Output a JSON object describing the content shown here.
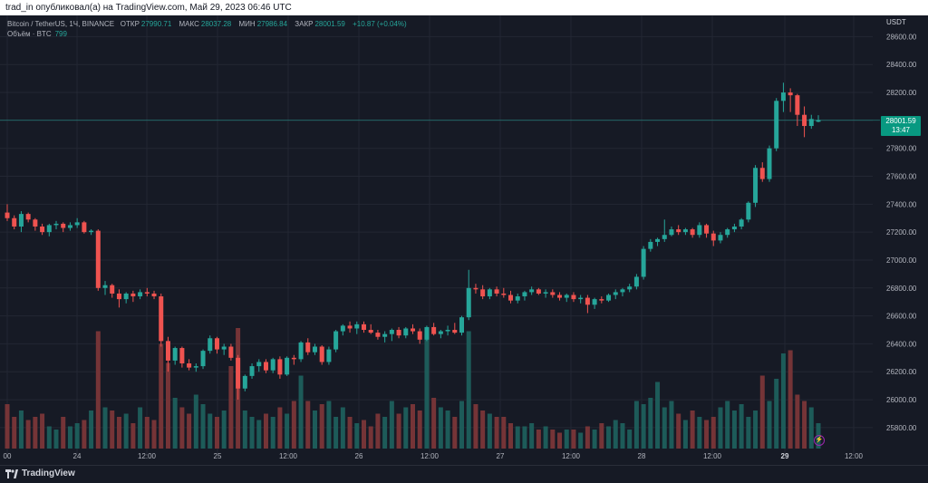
{
  "header": {
    "publish_line": "trad_in опубликовал(а) на TradingView.com, Май 29, 2023 06:46 UTC"
  },
  "legend": {
    "symbol": "Bitcoin / TetherUS, 1Ч, BINANCE",
    "open_label": "ОТКР",
    "open": "27990.71",
    "high_label": "МАКС",
    "high": "28037.28",
    "low_label": "МИН",
    "low": "27986.84",
    "close_label": "ЗАКР",
    "close": "28001.59",
    "change": "+10.87 (+0.04%)",
    "volume_label": "Объём · BTC",
    "volume": "799"
  },
  "axis": {
    "currency": "USDT",
    "y_ticks": [
      "28600.00",
      "28400.00",
      "28200.00",
      "28000.00",
      "27800.00",
      "27600.00",
      "27400.00",
      "27200.00",
      "27000.00",
      "26800.00",
      "26600.00",
      "26400.00",
      "26200.00",
      "26000.00",
      "25800.00"
    ],
    "x_ticks": [
      {
        "label": "00",
        "bold": false
      },
      {
        "label": "24",
        "bold": false
      },
      {
        "label": "12:00",
        "bold": false
      },
      {
        "label": "25",
        "bold": false
      },
      {
        "label": "12:00",
        "bold": false
      },
      {
        "label": "26",
        "bold": false
      },
      {
        "label": "12:00",
        "bold": false
      },
      {
        "label": "27",
        "bold": false
      },
      {
        "label": "12:00",
        "bold": false
      },
      {
        "label": "28",
        "bold": false
      },
      {
        "label": "12:00",
        "bold": false
      },
      {
        "label": "29",
        "bold": true
      },
      {
        "label": "12:00",
        "bold": false
      }
    ]
  },
  "price_tag": {
    "price": "28001.59",
    "countdown": "13:47"
  },
  "footer": {
    "brand": "TradingView"
  },
  "colors": {
    "up": "#26a69a",
    "down": "#ef5350",
    "bg": "#161a25",
    "grid": "#232733"
  },
  "chart_data": {
    "type": "candlestick",
    "ylim": [
      25650,
      28700
    ],
    "last_price": 28001.59,
    "candles": [
      [
        27340,
        27400,
        27280,
        27300
      ],
      [
        27300,
        27320,
        27220,
        27240
      ],
      [
        27240,
        27350,
        27200,
        27330
      ],
      [
        27330,
        27340,
        27270,
        27290
      ],
      [
        27290,
        27300,
        27210,
        27240
      ],
      [
        27240,
        27260,
        27180,
        27200
      ],
      [
        27200,
        27260,
        27170,
        27250
      ],
      [
        27250,
        27280,
        27220,
        27260
      ],
      [
        27260,
        27270,
        27200,
        27230
      ],
      [
        27230,
        27270,
        27210,
        27250
      ],
      [
        27250,
        27300,
        27230,
        27270
      ],
      [
        27270,
        27280,
        27190,
        27200
      ],
      [
        27200,
        27220,
        27180,
        27210
      ],
      [
        27210,
        27220,
        26780,
        26800
      ],
      [
        26800,
        26850,
        26750,
        26820
      ],
      [
        26820,
        26830,
        26730,
        26760
      ],
      [
        26760,
        26790,
        26660,
        26720
      ],
      [
        26720,
        26770,
        26690,
        26760
      ],
      [
        26760,
        26780,
        26700,
        26740
      ],
      [
        26740,
        26790,
        26720,
        26770
      ],
      [
        26770,
        26800,
        26740,
        26760
      ],
      [
        26760,
        26780,
        26720,
        26740
      ],
      [
        26740,
        26760,
        26380,
        26420
      ],
      [
        26420,
        26450,
        26200,
        26280
      ],
      [
        26280,
        26380,
        26250,
        26370
      ],
      [
        26370,
        26380,
        26230,
        26260
      ],
      [
        26260,
        26290,
        26210,
        26230
      ],
      [
        26230,
        26260,
        26200,
        26240
      ],
      [
        26240,
        26360,
        26220,
        26350
      ],
      [
        26350,
        26460,
        26330,
        26440
      ],
      [
        26440,
        26450,
        26330,
        26360
      ],
      [
        26360,
        26400,
        26320,
        26380
      ],
      [
        26380,
        26400,
        26280,
        26300
      ],
      [
        26300,
        26320,
        26000,
        26080
      ],
      [
        26080,
        26180,
        26060,
        26170
      ],
      [
        26170,
        26260,
        26150,
        26240
      ],
      [
        26240,
        26290,
        26200,
        26270
      ],
      [
        26270,
        26290,
        26190,
        26210
      ],
      [
        26210,
        26300,
        26190,
        26290
      ],
      [
        26290,
        26310,
        26150,
        26180
      ],
      [
        26180,
        26310,
        26170,
        26300
      ],
      [
        26300,
        26320,
        26250,
        26290
      ],
      [
        26290,
        26420,
        26270,
        26410
      ],
      [
        26410,
        26440,
        26320,
        26340
      ],
      [
        26340,
        26400,
        26320,
        26380
      ],
      [
        26380,
        26390,
        26250,
        26270
      ],
      [
        26270,
        26380,
        26250,
        26360
      ],
      [
        26360,
        26500,
        26340,
        26490
      ],
      [
        26490,
        26540,
        26460,
        26530
      ],
      [
        26530,
        26560,
        26480,
        26510
      ],
      [
        26510,
        26560,
        26470,
        26540
      ],
      [
        26540,
        26560,
        26480,
        26500
      ],
      [
        26500,
        26540,
        26470,
        26480
      ],
      [
        26480,
        26500,
        26430,
        26450
      ],
      [
        26450,
        26490,
        26410,
        26470
      ],
      [
        26470,
        26510,
        26420,
        26500
      ],
      [
        26500,
        26520,
        26440,
        26460
      ],
      [
        26460,
        26520,
        26440,
        26510
      ],
      [
        26510,
        26540,
        26470,
        26490
      ],
      [
        26490,
        26510,
        26400,
        26430
      ],
      [
        26430,
        26530,
        26420,
        26520
      ],
      [
        26520,
        26550,
        26460,
        26470
      ],
      [
        26470,
        26500,
        26440,
        26490
      ],
      [
        26490,
        26530,
        26460,
        26500
      ],
      [
        26500,
        26550,
        26470,
        26480
      ],
      [
        26480,
        26600,
        26460,
        26590
      ],
      [
        26590,
        26930,
        26570,
        26800
      ],
      [
        26800,
        26830,
        26760,
        26790
      ],
      [
        26790,
        26820,
        26720,
        26740
      ],
      [
        26740,
        26800,
        26720,
        26790
      ],
      [
        26790,
        26810,
        26740,
        26760
      ],
      [
        26760,
        26800,
        26730,
        26750
      ],
      [
        26750,
        26780,
        26690,
        26710
      ],
      [
        26710,
        26760,
        26690,
        26740
      ],
      [
        26740,
        26780,
        26710,
        26770
      ],
      [
        26770,
        26810,
        26750,
        26790
      ],
      [
        26790,
        26800,
        26750,
        26760
      ],
      [
        26760,
        26790,
        26730,
        26770
      ],
      [
        26770,
        26790,
        26730,
        26750
      ],
      [
        26750,
        26770,
        26710,
        26730
      ],
      [
        26730,
        26760,
        26700,
        26750
      ],
      [
        26750,
        26770,
        26700,
        26720
      ],
      [
        26720,
        26750,
        26690,
        26730
      ],
      [
        26730,
        26750,
        26620,
        26680
      ],
      [
        26680,
        26730,
        26650,
        26720
      ],
      [
        26720,
        26740,
        26690,
        26710
      ],
      [
        26710,
        26760,
        26700,
        26750
      ],
      [
        26750,
        26790,
        26720,
        26770
      ],
      [
        26770,
        26800,
        26740,
        26790
      ],
      [
        26790,
        26830,
        26770,
        26810
      ],
      [
        26810,
        26900,
        26790,
        26880
      ],
      [
        26880,
        27100,
        26860,
        27080
      ],
      [
        27080,
        27150,
        27060,
        27130
      ],
      [
        27130,
        27160,
        27100,
        27150
      ],
      [
        27150,
        27290,
        27130,
        27180
      ],
      [
        27180,
        27240,
        27170,
        27220
      ],
      [
        27220,
        27250,
        27180,
        27200
      ],
      [
        27200,
        27230,
        27180,
        27220
      ],
      [
        27220,
        27230,
        27160,
        27180
      ],
      [
        27180,
        27270,
        27160,
        27250
      ],
      [
        27250,
        27260,
        27160,
        27190
      ],
      [
        27190,
        27210,
        27100,
        27140
      ],
      [
        27140,
        27200,
        27120,
        27180
      ],
      [
        27180,
        27230,
        27160,
        27220
      ],
      [
        27220,
        27260,
        27200,
        27240
      ],
      [
        27240,
        27300,
        27220,
        27290
      ],
      [
        27290,
        27420,
        27270,
        27410
      ],
      [
        27410,
        27680,
        27380,
        27660
      ],
      [
        27660,
        27700,
        27560,
        27580
      ],
      [
        27580,
        27820,
        27560,
        27800
      ],
      [
        27800,
        28160,
        27780,
        28140
      ],
      [
        28140,
        28270,
        28060,
        28200
      ],
      [
        28200,
        28230,
        28060,
        28180
      ],
      [
        28180,
        28190,
        27960,
        28040
      ],
      [
        28040,
        28100,
        27880,
        27960
      ],
      [
        27960,
        28040,
        27940,
        28010
      ],
      [
        27990.71,
        28037.28,
        27986.84,
        28001.59
      ]
    ],
    "volume": [
      1400,
      1000,
      1200,
      900,
      1000,
      1100,
      700,
      600,
      1000,
      700,
      800,
      900,
      1200,
      3700,
      1300,
      1200,
      1000,
      1100,
      800,
      1300,
      1000,
      900,
      3300,
      2700,
      1600,
      1300,
      1100,
      1700,
      1400,
      1100,
      1000,
      1200,
      2600,
      3800,
      1200,
      1000,
      900,
      1100,
      1000,
      1300,
      1100,
      1500,
      2300,
      1500,
      1200,
      1400,
      1500,
      1000,
      1300,
      1000,
      800,
      900,
      700,
      1100,
      1000,
      1500,
      1100,
      1300,
      1400,
      1200,
      3600,
      1600,
      1300,
      1200,
      1000,
      1500,
      3700,
      1400,
      1200,
      1100,
      1000,
      1000,
      800,
      700,
      700,
      800,
      600,
      700,
      600,
      500,
      600,
      600,
      500,
      700,
      600,
      800,
      700,
      900,
      800,
      600,
      1500,
      1400,
      1600,
      2100,
      1300,
      1500,
      1100,
      900,
      1200,
      1000,
      900,
      1000,
      1300,
      1500,
      1200,
      1400,
      1000,
      1200,
      2300,
      1500,
      2200,
      3000,
      3100,
      1700,
      1500,
      1300,
      800
    ]
  }
}
